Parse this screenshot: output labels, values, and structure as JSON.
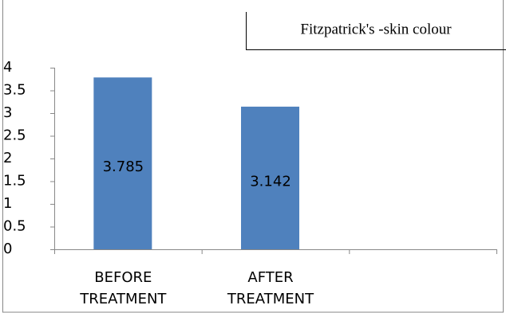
{
  "chart_data": {
    "type": "bar",
    "title": "Fitzpatrick's -skin colour",
    "categories": [
      "BEFORE TREATMENT",
      "AFTER TREATMENT",
      null
    ],
    "values": [
      3.785,
      3.142,
      null
    ],
    "color": "#4f81bd",
    "ylim": [
      0,
      4
    ],
    "yticks": [
      0,
      0.5,
      1,
      1.5,
      2,
      2.5,
      3,
      3.5,
      4
    ],
    "grid": false
  }
}
